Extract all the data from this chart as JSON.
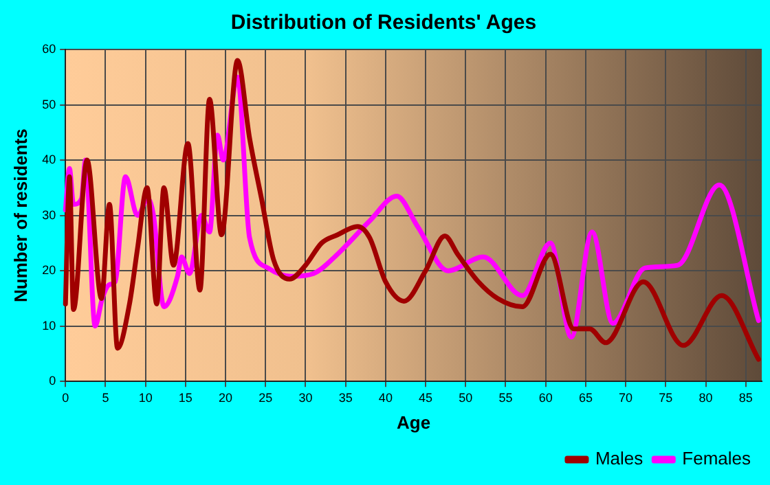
{
  "chart_data": {
    "type": "line",
    "title": "Distribution of Residents' Ages",
    "xlabel": "Age",
    "ylabel": "Number of residents",
    "xlim": [
      0,
      87
    ],
    "xticks": [
      0,
      5,
      10,
      15,
      20,
      25,
      30,
      35,
      40,
      45,
      50,
      55,
      60,
      65,
      70,
      75,
      80,
      85
    ],
    "ylim": [
      0,
      60
    ],
    "yticks": [
      0,
      10,
      20,
      30,
      40,
      50,
      60
    ],
    "grid": true,
    "legend": "bottom right",
    "marker": "none",
    "line_style": "solid",
    "series": [
      {
        "name": "Males",
        "color": "#a00000",
        "x": [
          0,
          0.5,
          1,
          2.7,
          4.5,
          5.5,
          6.5,
          8,
          9,
          10.2,
          11.4,
          12.3,
          13.5,
          15.3,
          16.8,
          18,
          19.5,
          21.5,
          23,
          24.5,
          26,
          28,
          30,
          32,
          34,
          36.5,
          38,
          40,
          42.3,
          45,
          47.4,
          49,
          51.6,
          54,
          57.1,
          60.6,
          63.5,
          65.5,
          67.5,
          72.2,
          77.2,
          82,
          86.6
        ],
        "values": [
          14,
          37,
          13,
          40,
          15,
          32,
          6,
          14,
          24,
          35,
          14,
          35,
          21,
          43,
          16.5,
          51,
          26.5,
          58,
          44,
          33,
          22,
          18.5,
          21,
          25,
          26.5,
          28,
          26,
          18,
          14.5,
          20,
          26.3,
          23,
          18,
          15,
          13.5,
          23,
          9.5,
          9.5,
          7,
          18,
          6.5,
          15.5,
          4
        ]
      },
      {
        "name": "Females",
        "color": "#ff00ff",
        "x": [
          0,
          0.5,
          1,
          2,
          2.5,
          3.7,
          4.6,
          5.5,
          6.2,
          7.5,
          9,
          10.3,
          11,
          12.3,
          14,
          14.5,
          15.5,
          17,
          18,
          19,
          19.7,
          21.5,
          23,
          25.3,
          28.2,
          31,
          34,
          38,
          41.4,
          44,
          47.8,
          52.2,
          57.1,
          60.6,
          63.2,
          65.8,
          68.4,
          72.4,
          76.5,
          81.7,
          86.6
        ],
        "values": [
          31,
          38.5,
          32,
          33,
          40,
          10,
          15,
          17.5,
          18,
          37,
          30,
          33,
          30,
          13.5,
          19,
          22.5,
          19.5,
          30,
          27,
          44.5,
          40,
          55,
          26,
          20.5,
          19,
          19.5,
          23,
          29,
          33.5,
          28,
          20,
          22.5,
          15.5,
          25,
          8,
          27,
          10.5,
          20.5,
          21,
          35.5,
          11
        ]
      }
    ]
  }
}
